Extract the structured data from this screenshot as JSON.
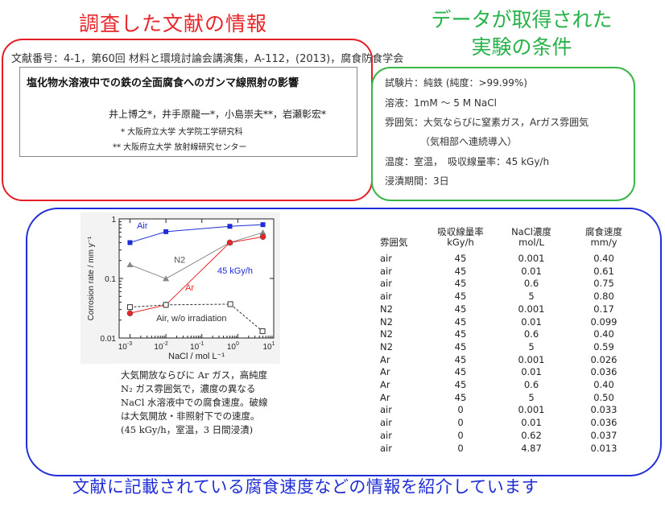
{
  "headings": {
    "literature_info": "調査した文献の情報",
    "conditions_line1": "データが取得された",
    "conditions_line2": "実験の条件"
  },
  "reference": {
    "line": "文献番号：4-1，第60回 材料と環境討論会講演集，A-112，(2013)，腐食防食学会",
    "paper_title": "塩化物水溶液中での鉄の全面腐食へのガンマ線照射の影響",
    "authors": "井上博之*，井手原龍一*，小島崇夫**，岩瀬彰宏*",
    "affiliation_1": "* 大阪府立大学 大学院工学研究科",
    "affiliation_2": "** 大阪府立大学 放射線研究センター"
  },
  "conditions": {
    "specimen": "試験片：純鉄 (純度：>99.99%)",
    "solution": "溶液：1mM ～ 5 M NaCl",
    "atmosphere": "雰囲気：大気ならびに窒素ガス，Arガス雰囲気",
    "atmosphere_note": "（気相部へ連続導入）",
    "temperature": "温度：室温，　吸収線量率：45 kGy/h",
    "duration": "浸漬期間：3日"
  },
  "figure_caption": [
    "大気開放ならびに Ar ガス，高純度",
    "N₂ ガス雰囲気で，濃度の異なる",
    "NaCl 水溶液中での腐食速度。破線",
    "は大気開放・非照射下での速度。",
    "(45 kGy/h，室温，3 日間浸漬)"
  ],
  "table": {
    "headers": [
      [
        "雰囲気"
      ],
      [
        "吸収線量率",
        "kGy/h"
      ],
      [
        "NaCl濃度",
        "mol/L"
      ],
      [
        "腐食速度",
        "mm/y"
      ]
    ],
    "rows": [
      [
        "air",
        "45",
        "0.001",
        "0.40"
      ],
      [
        "air",
        "45",
        "0.01",
        "0.61"
      ],
      [
        "air",
        "45",
        "0.6",
        "0.75"
      ],
      [
        "air",
        "45",
        "5",
        "0.80"
      ],
      [
        "N2",
        "45",
        "0.001",
        "0.17"
      ],
      [
        "N2",
        "45",
        "0.01",
        "0.099"
      ],
      [
        "N2",
        "45",
        "0.6",
        "0.40"
      ],
      [
        "N2",
        "45",
        "5",
        "0.59"
      ],
      [
        "Ar",
        "45",
        "0.001",
        "0.026"
      ],
      [
        "Ar",
        "45",
        "0.01",
        "0.036"
      ],
      [
        "Ar",
        "45",
        "0.6",
        "0.40"
      ],
      [
        "Ar",
        "45",
        "5",
        "0.50"
      ],
      [
        "air",
        "0",
        "0.001",
        "0.033"
      ],
      [
        "air",
        "0",
        "0.01",
        "0.036"
      ],
      [
        "air",
        "0",
        "0.62",
        "0.037"
      ],
      [
        "air",
        "0",
        "4.87",
        "0.013"
      ]
    ]
  },
  "footer": "文献に記載されている腐食速度などの情報を紹介しています",
  "chart_data": {
    "type": "line",
    "xlabel": "NaCl / mol L⁻¹",
    "ylabel": "Corrosion rate / mm y⁻¹",
    "x_scale": "log",
    "y_scale": "log",
    "xlim": [
      0.0005,
      10
    ],
    "ylim": [
      0.01,
      1.0
    ],
    "x_ticks": [
      {
        "value": 0.001,
        "base": "10",
        "exp": "-3"
      },
      {
        "value": 0.01,
        "base": "10",
        "exp": "-2"
      },
      {
        "value": 0.1,
        "base": "10",
        "exp": "-1"
      },
      {
        "value": 1,
        "base": "10",
        "exp": "0"
      },
      {
        "value": 10,
        "base": "10",
        "exp": "1"
      }
    ],
    "y_ticks": [
      {
        "value": 0.01,
        "label": "0.01"
      },
      {
        "value": 0.1,
        "label": "0.1"
      },
      {
        "value": 1,
        "label": "1"
      }
    ],
    "annotation": "45 kGy/h",
    "annotation_color": "#1f2dd6",
    "series": [
      {
        "name": "Air",
        "color": "#1f2dd6",
        "marker": "square",
        "dashed": false,
        "x": [
          0.001,
          0.01,
          0.6,
          5
        ],
        "y": [
          0.4,
          0.61,
          0.75,
          0.8
        ]
      },
      {
        "name": "N2",
        "color": "#888888",
        "marker": "triangle",
        "dashed": false,
        "x": [
          0.001,
          0.01,
          0.6,
          5
        ],
        "y": [
          0.17,
          0.099,
          0.4,
          0.59
        ]
      },
      {
        "name": "Ar",
        "color": "#e8262a",
        "marker": "circle",
        "dashed": false,
        "x": [
          0.001,
          0.01,
          0.6,
          5
        ],
        "y": [
          0.026,
          0.036,
          0.4,
          0.5
        ]
      },
      {
        "name": "Air, w/o irradiation",
        "color": "#333333",
        "marker": "open-square",
        "dashed": true,
        "x": [
          0.001,
          0.01,
          0.62,
          4.87
        ],
        "y": [
          0.033,
          0.036,
          0.037,
          0.013
        ]
      }
    ]
  }
}
